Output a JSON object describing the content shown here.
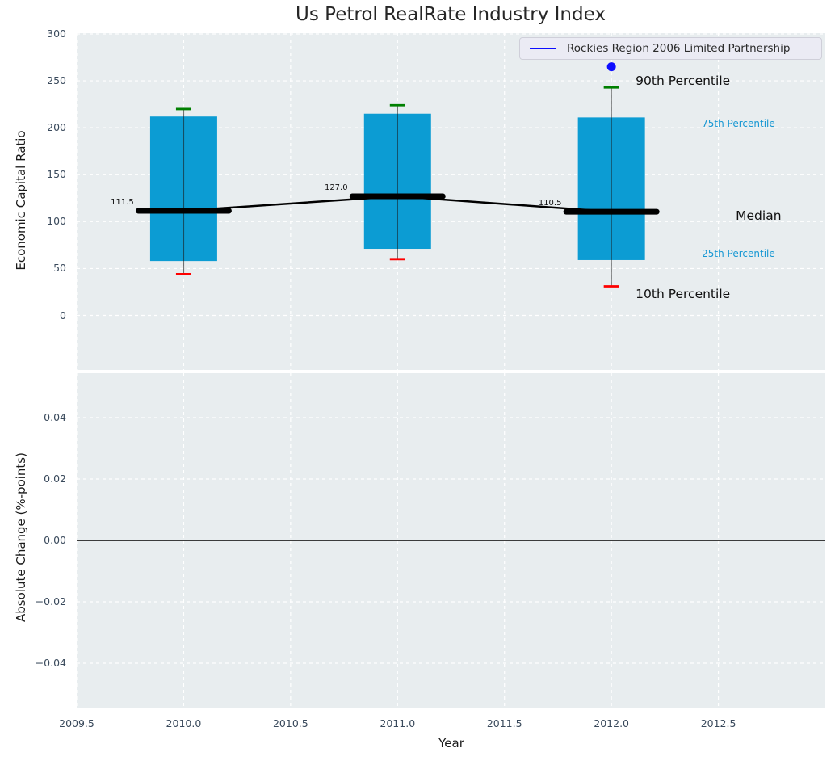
{
  "figure": {
    "title": "Us Petrol RealRate Industry Index",
    "colors": {
      "figure_bg": "#ffffff",
      "plot_bg": "#e8edef",
      "grid": "#ffffff",
      "tick_text": "#3a4a5c",
      "title_text": "#262626",
      "box_fill": "#0c9cd3",
      "whisker": "#1a1a1a",
      "cap_high": "#008000",
      "cap_low": "#fe0000",
      "median_line": "#000000",
      "company_point": "#0d0dff",
      "accent_text": "#1697d3",
      "zero_line": "#000000"
    }
  },
  "chart_data": [
    {
      "type": "box",
      "title": "Us Petrol RealRate Industry Index",
      "ylabel": "Economic Capital Ratio",
      "xlabel": "Year",
      "xlim": [
        2009.5,
        2013.0
      ],
      "ylim": [
        -58,
        301
      ],
      "grid": true,
      "xtick_values": [
        2009.5,
        2010.0,
        2010.5,
        2011.0,
        2011.5,
        2012.0,
        2012.5
      ],
      "xtick_labels": [
        "2009.5",
        "2010.0",
        "2010.5",
        "2011.0",
        "2011.5",
        "2012.0",
        "2012.5"
      ],
      "ytick_values": [
        0,
        50,
        100,
        150,
        200,
        250,
        300
      ],
      "ytick_labels": [
        "0",
        "50",
        "100",
        "150",
        "200",
        "250",
        "300"
      ],
      "boxes": [
        {
          "x": 2010,
          "p10": 44,
          "p25": 58,
          "median": 111.5,
          "p75": 212,
          "p90": 220,
          "median_label": "111.5"
        },
        {
          "x": 2011,
          "p10": 60,
          "p25": 71,
          "median": 127.0,
          "p75": 215,
          "p90": 224,
          "median_label": "127.0"
        },
        {
          "x": 2012,
          "p10": 31,
          "p25": 59,
          "median": 110.5,
          "p75": 211,
          "p90": 243,
          "median_label": "110.5"
        }
      ],
      "company_point": {
        "x": 2012,
        "y": 265
      },
      "legend": {
        "label": "Rockies Region 2006 Limited Partnership",
        "position": "upper right"
      },
      "percentile_labels": [
        {
          "text": "90th Percentile",
          "anchor": "p90",
          "style": "large"
        },
        {
          "text": "75th Percentile",
          "anchor": "p75",
          "style": "small"
        },
        {
          "text": "Median",
          "anchor": "median",
          "style": "large"
        },
        {
          "text": "25th Percentile",
          "anchor": "p25",
          "style": "small"
        },
        {
          "text": "10th Percentile",
          "anchor": "p10",
          "style": "large"
        }
      ]
    },
    {
      "type": "line",
      "ylabel": "Absolute Change (%-points)",
      "xlabel": "Year",
      "xlim": [
        2009.5,
        2013.0
      ],
      "ylim": [
        -0.055,
        0.055
      ],
      "grid": true,
      "xtick_values": [
        2009.5,
        2010.0,
        2010.5,
        2011.0,
        2011.5,
        2012.0,
        2012.5
      ],
      "xtick_labels": [
        "2009.5",
        "2010.0",
        "2010.5",
        "2011.0",
        "2011.5",
        "2012.0",
        "2012.5"
      ],
      "ytick_values": [
        -0.04,
        -0.02,
        0.0,
        0.02,
        0.04
      ],
      "ytick_labels": [
        "−0.04",
        "−0.02",
        "0.00",
        "0.02",
        "0.04"
      ],
      "zero_line": 0.0,
      "series": []
    }
  ]
}
